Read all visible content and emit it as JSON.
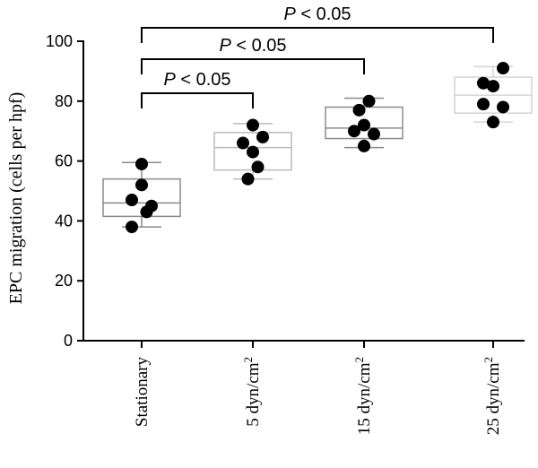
{
  "chart_data": {
    "type": "box",
    "ylabel": "EPC migration (cells per hpf)",
    "xlabel": "",
    "ylim": [
      0,
      100
    ],
    "yticks": [
      0,
      20,
      40,
      60,
      80,
      100
    ],
    "categories": [
      {
        "base": "Stationary",
        "sup": ""
      },
      {
        "base": "5 dyn/cm",
        "sup": "2"
      },
      {
        "base": "15 dyn/cm",
        "sup": "2"
      },
      {
        "base": "25 dyn/cm",
        "sup": "2"
      }
    ],
    "box_colors": [
      "#8a8a8a",
      "#b9b9c9",
      "#8c8c8c",
      "#d4d4d4"
    ],
    "boxes": [
      {
        "whisker_low": 38,
        "q1": 41.5,
        "median": 46,
        "q3": 54,
        "whisker_high": 59.5
      },
      {
        "whisker_low": 54,
        "q1": 57,
        "median": 64.5,
        "q3": 69.5,
        "whisker_high": 72.5
      },
      {
        "whisker_low": 64.5,
        "q1": 67.5,
        "median": 71,
        "q3": 78,
        "whisker_high": 81
      },
      {
        "whisker_low": 73,
        "q1": 76,
        "median": 82,
        "q3": 88,
        "whisker_high": 91.5
      }
    ],
    "points": [
      [
        {
          "dx": 0,
          "y": 59
        },
        {
          "dx": 0,
          "y": 52
        },
        {
          "dx": -1,
          "y": 47
        },
        {
          "dx": 1,
          "y": 45
        },
        {
          "dx": 0.5,
          "y": 43
        },
        {
          "dx": -1,
          "y": 38
        }
      ],
      [
        {
          "dx": 0,
          "y": 72
        },
        {
          "dx": 1,
          "y": 68
        },
        {
          "dx": -1,
          "y": 66
        },
        {
          "dx": 0,
          "y": 63
        },
        {
          "dx": 0.5,
          "y": 58
        },
        {
          "dx": -0.5,
          "y": 54
        }
      ],
      [
        {
          "dx": 0.5,
          "y": 80
        },
        {
          "dx": -0.5,
          "y": 77
        },
        {
          "dx": 0,
          "y": 72
        },
        {
          "dx": -1,
          "y": 70
        },
        {
          "dx": 1,
          "y": 69
        },
        {
          "dx": 0,
          "y": 65
        }
      ],
      [
        {
          "dx": 1,
          "y": 91
        },
        {
          "dx": -1,
          "y": 86
        },
        {
          "dx": 0,
          "y": 85
        },
        {
          "dx": -1,
          "y": 79
        },
        {
          "dx": 1,
          "y": 78
        },
        {
          "dx": 0,
          "y": 73
        }
      ]
    ],
    "comparisons": [
      {
        "from": 0,
        "to": 1,
        "label_p": "P",
        "label_rest": " < 0.05"
      },
      {
        "from": 0,
        "to": 2,
        "label_p": "P",
        "label_rest": " < 0.05"
      },
      {
        "from": 0,
        "to": 3,
        "label_p": "P",
        "label_rest": " < 0.05"
      }
    ]
  }
}
